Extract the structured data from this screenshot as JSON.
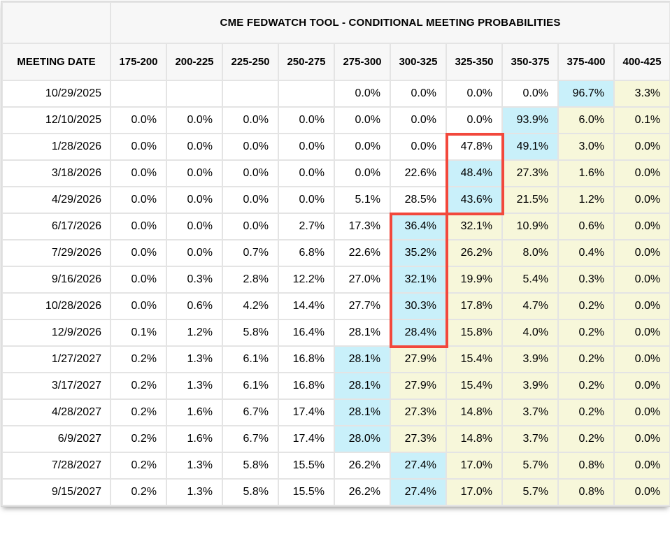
{
  "colors": {
    "highlight_cyan": "#c9f0fa",
    "highlight_yellow": "#f7f7da",
    "red_box_border": "#f2483c",
    "header_background": "#f7f7f7",
    "grid_line": "#e4e4e4"
  },
  "chart_data": {
    "type": "table",
    "title": "CME FEDWATCH TOOL - CONDITIONAL MEETING PROBABILITIES",
    "row_header_label": "MEETING DATE",
    "rate_range_columns": [
      "175-200",
      "200-225",
      "225-250",
      "250-275",
      "275-300",
      "300-325",
      "325-350",
      "350-375",
      "375-400",
      "400-425"
    ],
    "highlight_key": {
      "w": "none",
      "c": "cyan",
      "y": "yellow"
    },
    "rows": [
      {
        "date": "10/29/2025",
        "values": [
          "",
          "",
          "",
          "",
          "0.0%",
          "0.0%",
          "0.0%",
          "0.0%",
          "96.7%",
          "3.3%"
        ],
        "bg": [
          "w",
          "w",
          "w",
          "w",
          "w",
          "w",
          "w",
          "w",
          "c",
          "y"
        ]
      },
      {
        "date": "12/10/2025",
        "values": [
          "0.0%",
          "0.0%",
          "0.0%",
          "0.0%",
          "0.0%",
          "0.0%",
          "0.0%",
          "93.9%",
          "6.0%",
          "0.1%"
        ],
        "bg": [
          "w",
          "w",
          "w",
          "w",
          "w",
          "w",
          "w",
          "c",
          "y",
          "y"
        ]
      },
      {
        "date": "1/28/2026",
        "values": [
          "0.0%",
          "0.0%",
          "0.0%",
          "0.0%",
          "0.0%",
          "0.0%",
          "47.8%",
          "49.1%",
          "3.0%",
          "0.0%"
        ],
        "bg": [
          "w",
          "w",
          "w",
          "w",
          "w",
          "w",
          "w",
          "c",
          "y",
          "y"
        ]
      },
      {
        "date": "3/18/2026",
        "values": [
          "0.0%",
          "0.0%",
          "0.0%",
          "0.0%",
          "0.0%",
          "22.6%",
          "48.4%",
          "27.3%",
          "1.6%",
          "0.0%"
        ],
        "bg": [
          "w",
          "w",
          "w",
          "w",
          "w",
          "w",
          "c",
          "y",
          "y",
          "y"
        ]
      },
      {
        "date": "4/29/2026",
        "values": [
          "0.0%",
          "0.0%",
          "0.0%",
          "0.0%",
          "5.1%",
          "28.5%",
          "43.6%",
          "21.5%",
          "1.2%",
          "0.0%"
        ],
        "bg": [
          "w",
          "w",
          "w",
          "w",
          "w",
          "w",
          "c",
          "y",
          "y",
          "y"
        ]
      },
      {
        "date": "6/17/2026",
        "values": [
          "0.0%",
          "0.0%",
          "0.0%",
          "2.7%",
          "17.3%",
          "36.4%",
          "32.1%",
          "10.9%",
          "0.6%",
          "0.0%"
        ],
        "bg": [
          "w",
          "w",
          "w",
          "w",
          "w",
          "c",
          "y",
          "y",
          "y",
          "y"
        ]
      },
      {
        "date": "7/29/2026",
        "values": [
          "0.0%",
          "0.0%",
          "0.7%",
          "6.8%",
          "22.6%",
          "35.2%",
          "26.2%",
          "8.0%",
          "0.4%",
          "0.0%"
        ],
        "bg": [
          "w",
          "w",
          "w",
          "w",
          "w",
          "c",
          "y",
          "y",
          "y",
          "y"
        ]
      },
      {
        "date": "9/16/2026",
        "values": [
          "0.0%",
          "0.3%",
          "2.8%",
          "12.2%",
          "27.0%",
          "32.1%",
          "19.9%",
          "5.4%",
          "0.3%",
          "0.0%"
        ],
        "bg": [
          "w",
          "w",
          "w",
          "w",
          "w",
          "c",
          "y",
          "y",
          "y",
          "y"
        ]
      },
      {
        "date": "10/28/2026",
        "values": [
          "0.0%",
          "0.6%",
          "4.2%",
          "14.4%",
          "27.7%",
          "30.3%",
          "17.8%",
          "4.7%",
          "0.2%",
          "0.0%"
        ],
        "bg": [
          "w",
          "w",
          "w",
          "w",
          "w",
          "c",
          "y",
          "y",
          "y",
          "y"
        ]
      },
      {
        "date": "12/9/2026",
        "values": [
          "0.1%",
          "1.2%",
          "5.8%",
          "16.4%",
          "28.1%",
          "28.4%",
          "15.8%",
          "4.0%",
          "0.2%",
          "0.0%"
        ],
        "bg": [
          "w",
          "w",
          "w",
          "w",
          "w",
          "c",
          "y",
          "y",
          "y",
          "y"
        ]
      },
      {
        "date": "1/27/2027",
        "values": [
          "0.2%",
          "1.3%",
          "6.1%",
          "16.8%",
          "28.1%",
          "27.9%",
          "15.4%",
          "3.9%",
          "0.2%",
          "0.0%"
        ],
        "bg": [
          "w",
          "w",
          "w",
          "w",
          "c",
          "y",
          "y",
          "y",
          "y",
          "y"
        ]
      },
      {
        "date": "3/17/2027",
        "values": [
          "0.2%",
          "1.3%",
          "6.1%",
          "16.8%",
          "28.1%",
          "27.9%",
          "15.4%",
          "3.9%",
          "0.2%",
          "0.0%"
        ],
        "bg": [
          "w",
          "w",
          "w",
          "w",
          "c",
          "y",
          "y",
          "y",
          "y",
          "y"
        ]
      },
      {
        "date": "4/28/2027",
        "values": [
          "0.2%",
          "1.6%",
          "6.7%",
          "17.4%",
          "28.1%",
          "27.3%",
          "14.8%",
          "3.7%",
          "0.2%",
          "0.0%"
        ],
        "bg": [
          "w",
          "w",
          "w",
          "w",
          "c",
          "y",
          "y",
          "y",
          "y",
          "y"
        ]
      },
      {
        "date": "6/9/2027",
        "values": [
          "0.2%",
          "1.6%",
          "6.7%",
          "17.4%",
          "28.0%",
          "27.3%",
          "14.8%",
          "3.7%",
          "0.2%",
          "0.0%"
        ],
        "bg": [
          "w",
          "w",
          "w",
          "w",
          "c",
          "y",
          "y",
          "y",
          "y",
          "y"
        ]
      },
      {
        "date": "7/28/2027",
        "values": [
          "0.2%",
          "1.3%",
          "5.8%",
          "15.5%",
          "26.2%",
          "27.4%",
          "17.0%",
          "5.7%",
          "0.8%",
          "0.0%"
        ],
        "bg": [
          "w",
          "w",
          "w",
          "w",
          "w",
          "c",
          "y",
          "y",
          "y",
          "y"
        ]
      },
      {
        "date": "9/15/2027",
        "values": [
          "0.2%",
          "1.3%",
          "5.8%",
          "15.5%",
          "26.2%",
          "27.4%",
          "17.0%",
          "5.7%",
          "0.8%",
          "0.0%"
        ],
        "bg": [
          "w",
          "w",
          "w",
          "w",
          "w",
          "c",
          "y",
          "y",
          "y",
          "y"
        ]
      }
    ],
    "red_boxes": [
      {
        "column": "325-350",
        "start_date": "1/28/2026",
        "end_date": "4/29/2026"
      },
      {
        "column": "300-325",
        "start_date": "6/17/2026",
        "end_date": "12/9/2026"
      }
    ]
  }
}
